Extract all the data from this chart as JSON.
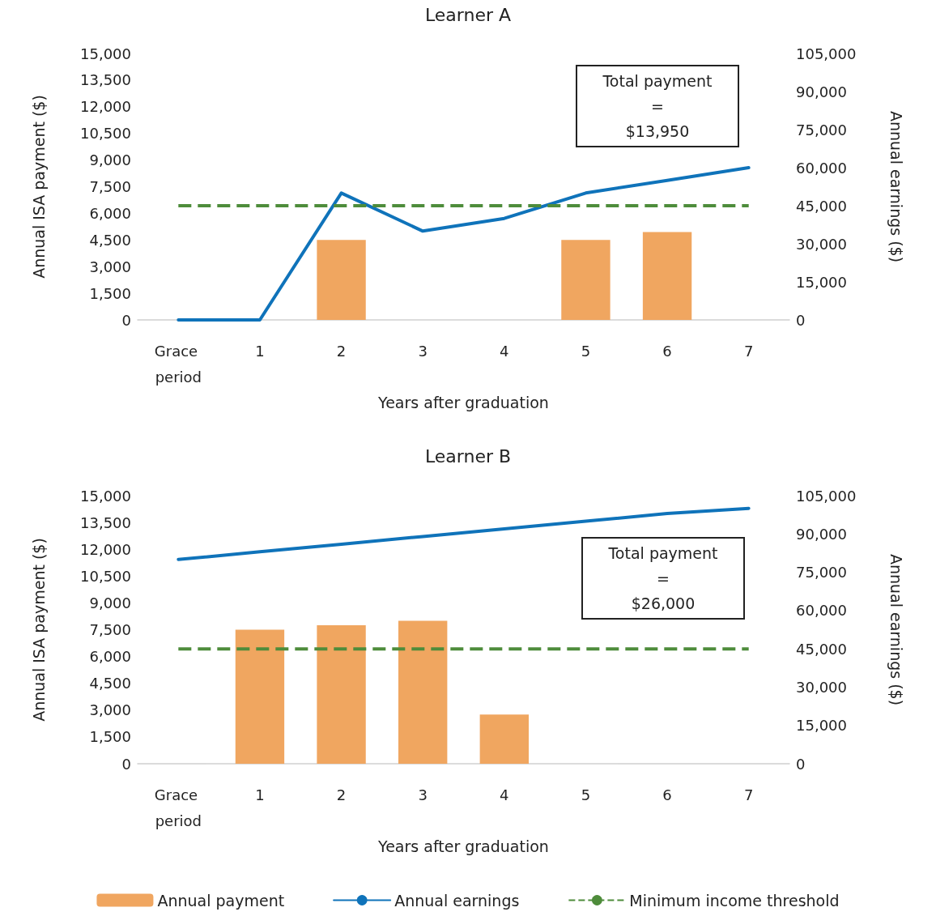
{
  "chart_data": [
    {
      "type": "bar",
      "title": "Learner A",
      "xlabel": "Years after graduation",
      "ylabel": "Annual ISA payment ($)",
      "y2label": "Annual earnings ($)",
      "categories": [
        "Grace period",
        "1",
        "2",
        "3",
        "4",
        "5",
        "6",
        "7"
      ],
      "series": [
        {
          "color": "#f0a660",
          "values": [
            null,
            null,
            4500,
            null,
            null,
            4500,
            4950,
            null
          ]
        },
        {
          "type": "line",
          "axis": "y2",
          "color": "#0f73ba",
          "marker": "none",
          "line_style": "solid",
          "values": [
            0,
            0,
            50000,
            35000,
            40000,
            50000,
            55000,
            60000
          ]
        }
      ],
      "ylim": [
        0,
        15000
      ],
      "yticks": [
        0,
        {
          "value": 1500,
          "label": "1,500"
        },
        {
          "value": 3000,
          "label": "3,000"
        },
        {
          "value": 4500,
          "label": "4,500"
        },
        {
          "value": 6000,
          "label": "6,000"
        },
        {
          "value": 7500,
          "label": "7,500"
        },
        {
          "value": 9000,
          "label": "9,000"
        },
        {
          "value": 10500,
          "label": "10,500"
        },
        {
          "value": 12000,
          "label": "12,000"
        },
        {
          "value": 13500,
          "label": "13,500"
        },
        {
          "value": 15000,
          "label": "15,000"
        }
      ],
      "y2lim": [
        0,
        105000
      ],
      "y2ticks": [
        0,
        {
          "value": 15000,
          "label": "15,000"
        },
        {
          "value": 30000,
          "label": "30,000"
        },
        {
          "value": 45000,
          "label": "45,000"
        },
        {
          "value": 60000,
          "label": "60,000"
        },
        {
          "value": 75000,
          "label": "75,000"
        },
        {
          "value": 90000,
          "label": "90,000"
        },
        {
          "value": 105000,
          "label": "105,000"
        }
      ],
      "ref_lines": [
        {
          "axis": "y2",
          "value": 45000,
          "color": "#4e8c3b",
          "line_style": "dashed"
        }
      ],
      "annotations": [
        "Total payment\n=\n$13,950"
      ],
      "grid": false,
      "legend": false
    },
    {
      "type": "bar",
      "title": "Learner B",
      "xlabel": "Years after graduation",
      "ylabel": "Annual ISA payment ($)",
      "y2label": "Annual earnings ($)",
      "categories": [
        "Grace period",
        "1",
        "2",
        "3",
        "4",
        "5",
        "6",
        "7"
      ],
      "series": [
        {
          "name": "Annual payment",
          "color": "#f0a660",
          "values": [
            null,
            7500,
            7750,
            8000,
            2750,
            null,
            null,
            null
          ]
        },
        {
          "type": "line",
          "name": "Annual earnings",
          "axis": "y2",
          "color": "#0f73ba",
          "marker": "none",
          "line_style": "solid",
          "values": [
            80000,
            83000,
            86000,
            89000,
            92000,
            95000,
            98000,
            100000
          ]
        }
      ],
      "ylim": [
        0,
        15000
      ],
      "yticks": [
        0,
        {
          "value": 1500,
          "label": "1,500"
        },
        {
          "value": 3000,
          "label": "3,000"
        },
        {
          "value": 4500,
          "label": "4,500"
        },
        {
          "value": 6000,
          "label": "6,000"
        },
        {
          "value": 7500,
          "label": "7,500"
        },
        {
          "value": 9000,
          "label": "9,000"
        },
        {
          "value": 10500,
          "label": "10,500"
        },
        {
          "value": 12000,
          "label": "12,000"
        },
        {
          "value": 13500,
          "label": "13,500"
        },
        {
          "value": 15000,
          "label": "15,000"
        }
      ],
      "y2lim": [
        0,
        105000
      ],
      "y2ticks": [
        0,
        {
          "value": 15000,
          "label": "15,000"
        },
        {
          "value": 30000,
          "label": "30,000"
        },
        {
          "value": 45000,
          "label": "45,000"
        },
        {
          "value": 60000,
          "label": "60,000"
        },
        {
          "value": 75000,
          "label": "75,000"
        },
        {
          "value": 90000,
          "label": "90,000"
        },
        {
          "value": 105000,
          "label": "105,000"
        }
      ],
      "ref_lines": [
        {
          "axis": "y2",
          "value": 45000,
          "label": "Minimum income threshold",
          "color": "#4e8c3b",
          "line_style": "dashed"
        }
      ],
      "annotations": [
        "Total payment\n=\n$26,000"
      ],
      "grid": false,
      "legend": "bottom"
    }
  ]
}
